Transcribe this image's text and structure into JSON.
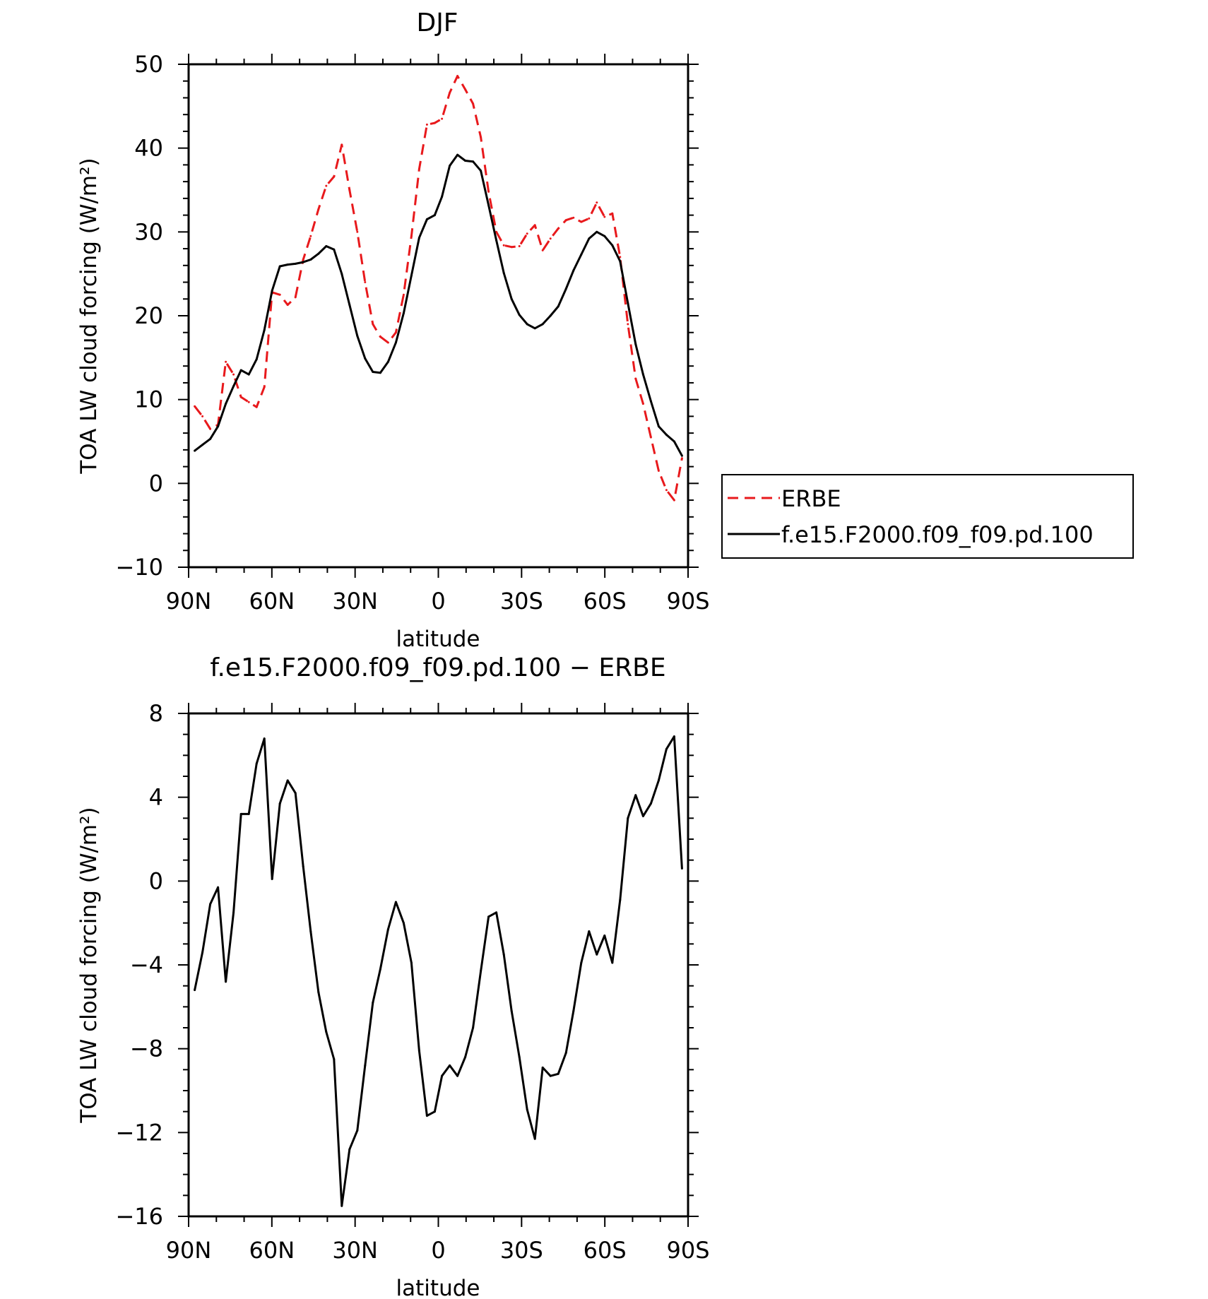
{
  "chart_data": [
    {
      "type": "line",
      "title": "DJF",
      "xlabel": "latitude",
      "ylabel": "TOA LW cloud forcing (W/m²)",
      "x_tick_labels": [
        "90N",
        "60N",
        "30N",
        "0",
        "30S",
        "60S",
        "90S"
      ],
      "y_tick_labels": [
        "−10",
        "0",
        "10",
        "20",
        "30",
        "40",
        "50"
      ],
      "ylim": [
        -10,
        50
      ],
      "grid": false,
      "legend": "right",
      "x": [
        87.8,
        85,
        82.2,
        79.4,
        76.6,
        73.8,
        71.1,
        68.3,
        65.5,
        62.7,
        59.9,
        57.1,
        54.3,
        51.5,
        48.7,
        46.0,
        43.2,
        40.4,
        37.6,
        34.8,
        32.0,
        29.2,
        26.4,
        23.6,
        20.9,
        18.1,
        15.3,
        12.5,
        9.7,
        6.9,
        4.1,
        1.3,
        -1.3,
        -4.1,
        -6.9,
        -9.7,
        -12.5,
        -15.3,
        -18.1,
        -20.9,
        -23.6,
        -26.4,
        -29.2,
        -32.0,
        -34.8,
        -37.6,
        -40.4,
        -43.2,
        -46.0,
        -48.7,
        -51.5,
        -54.3,
        -57.1,
        -59.9,
        -62.7,
        -65.5,
        -68.3,
        -71.1,
        -73.8,
        -76.6,
        -79.4,
        -82.2,
        -85,
        -87.8
      ],
      "series": [
        {
          "name": "ERBE",
          "color": "#e8191c",
          "dash": "dashed",
          "values": [
            9.2,
            8.0,
            6.5,
            7.0,
            14.5,
            13.0,
            10.3,
            9.7,
            9.1,
            11.5,
            22.8,
            22.5,
            21.3,
            22.2,
            26.7,
            29.5,
            32.7,
            35.5,
            36.6,
            40.4,
            35.0,
            30.0,
            24.0,
            19.0,
            17.5,
            16.8,
            18.0,
            22.5,
            29.5,
            37.5,
            42.8,
            43.0,
            43.5,
            46.6,
            48.6,
            47.0,
            45.3,
            41.3,
            34.8,
            30.0,
            28.4,
            28.2,
            28.3,
            29.8,
            30.8,
            27.8,
            29.2,
            30.4,
            31.4,
            31.7,
            31.2,
            31.6,
            33.5,
            31.8,
            32.2,
            27.0,
            19.0,
            12.5,
            9.5,
            5.5,
            1.5,
            -0.8,
            -2.0,
            3.0
          ]
        },
        {
          "name": "f.e15.F2000.f09_f09.pd.100",
          "color": "#000000",
          "dash": "solid",
          "values": [
            3.9,
            4.6,
            5.3,
            6.8,
            9.5,
            11.6,
            13.5,
            13.0,
            14.8,
            18.3,
            23.0,
            25.9,
            26.1,
            26.2,
            26.4,
            26.7,
            27.4,
            28.3,
            27.9,
            25.0,
            21.3,
            17.6,
            14.9,
            13.3,
            13.2,
            14.5,
            16.8,
            20.3,
            24.8,
            29.3,
            31.5,
            32.0,
            34.2,
            37.9,
            39.2,
            38.5,
            38.4,
            37.3,
            33.2,
            29.0,
            25.1,
            22.0,
            20.1,
            19.0,
            18.5,
            19.0,
            20.0,
            21.1,
            23.2,
            25.4,
            27.3,
            29.2,
            30.0,
            29.5,
            28.4,
            26.5,
            21.5,
            16.6,
            13.0,
            9.8,
            6.8,
            5.8,
            5.0,
            3.3
          ]
        }
      ]
    },
    {
      "type": "line",
      "title": "f.e15.F2000.f09_f09.pd.100 − ERBE",
      "xlabel": "latitude",
      "ylabel": "TOA LW cloud forcing (W/m²)",
      "x_tick_labels": [
        "90N",
        "60N",
        "30N",
        "0",
        "30S",
        "60S",
        "90S"
      ],
      "y_tick_labels": [
        "−16",
        "−12",
        "−8",
        "−4",
        "0",
        "4",
        "8"
      ],
      "ylim": [
        -16,
        8
      ],
      "grid": false,
      "x": [
        87.8,
        85,
        82.2,
        79.4,
        76.6,
        73.8,
        71.1,
        68.3,
        65.5,
        62.7,
        59.9,
        57.1,
        54.3,
        51.5,
        48.7,
        46.0,
        43.2,
        40.4,
        37.6,
        34.8,
        32.0,
        29.2,
        26.4,
        23.6,
        20.9,
        18.1,
        15.3,
        12.5,
        9.7,
        6.9,
        4.1,
        1.3,
        -1.3,
        -4.1,
        -6.9,
        -9.7,
        -12.5,
        -15.3,
        -18.1,
        -20.9,
        -23.6,
        -26.4,
        -29.2,
        -32.0,
        -34.8,
        -37.6,
        -40.4,
        -43.2,
        -46.0,
        -48.7,
        -51.5,
        -54.3,
        -57.1,
        -59.9,
        -62.7,
        -65.5,
        -68.3,
        -71.1,
        -73.8,
        -76.6,
        -79.4,
        -82.2,
        -85,
        -87.8
      ],
      "series": [
        {
          "color": "#000000",
          "dash": "solid",
          "values": [
            -5.2,
            -3.4,
            -1.1,
            -0.3,
            -4.8,
            -1.5,
            3.2,
            3.2,
            5.6,
            6.8,
            0.1,
            3.7,
            4.8,
            4.2,
            0.7,
            -2.4,
            -5.3,
            -7.2,
            -8.5,
            -15.5,
            -12.8,
            -11.9,
            -8.8,
            -5.8,
            -4.2,
            -2.3,
            -1.0,
            -2.0,
            -3.9,
            -8.1,
            -11.2,
            -11.0,
            -9.3,
            -8.8,
            -9.3,
            -8.4,
            -7.0,
            -4.3,
            -1.7,
            -1.5,
            -3.5,
            -6.2,
            -8.4,
            -10.9,
            -12.3,
            -8.9,
            -9.3,
            -9.2,
            -8.2,
            -6.2,
            -3.9,
            -2.4,
            -3.5,
            -2.6,
            -3.9,
            -0.9,
            3.0,
            4.1,
            3.1,
            3.7,
            4.8,
            6.3,
            6.9,
            0.6
          ]
        }
      ]
    }
  ]
}
